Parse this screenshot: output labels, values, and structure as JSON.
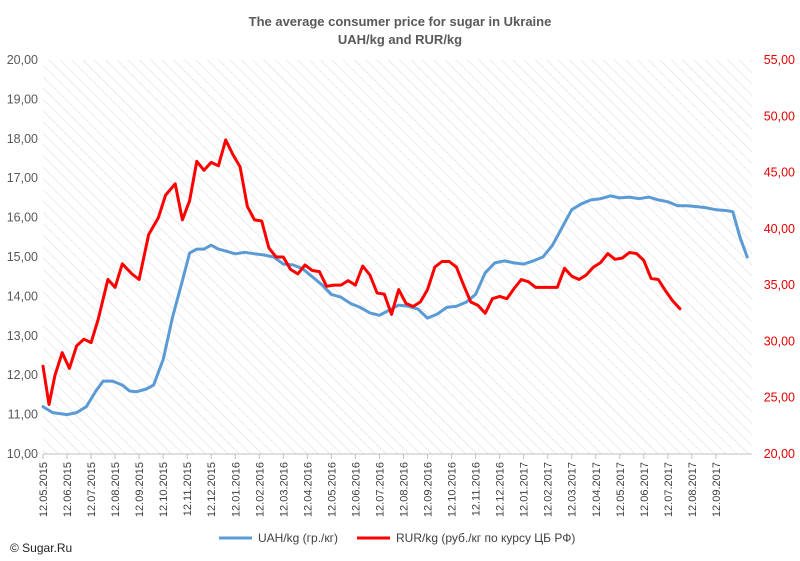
{
  "chart_data": {
    "type": "line",
    "title": "The average consumer price for sugar in Ukraine",
    "subtitle": "UAH/kg and RUR/kg",
    "x_labels": [
      "12.05.2015",
      "12.06.2015",
      "12.07.2015",
      "12.08.2015",
      "12.09.2015",
      "12.10.2015",
      "12.11.2015",
      "12.12.2015",
      "12.01.2016",
      "12.02.2016",
      "12.03.2016",
      "12.04.2016",
      "12.05.2016",
      "12.06.2016",
      "12.07.2016",
      "12.08.2016",
      "12.09.2016",
      "12.10.2016",
      "12.11.2016",
      "12.12.2016",
      "12.01.2017",
      "12.02.2017",
      "12.03.2017",
      "12.04.2017",
      "12.05.2017",
      "12.06.2017",
      "12.07.2017",
      "12.08.2017",
      "12.09.2017"
    ],
    "x_range": [
      0,
      29.5
    ],
    "y_left": {
      "min": 10,
      "max": 20,
      "step": 1,
      "labels": [
        "10,00",
        "11,00",
        "12,00",
        "13,00",
        "14,00",
        "15,00",
        "16,00",
        "17,00",
        "18,00",
        "19,00",
        "20,00"
      ]
    },
    "y_right": {
      "min": 20,
      "max": 55,
      "step": 5,
      "labels": [
        "20,00",
        "25,00",
        "30,00",
        "35,00",
        "40,00",
        "45,00",
        "50,00",
        "55,00"
      ]
    },
    "grid": "diagonal hatch",
    "legend_position": "bottom",
    "series": [
      {
        "name": "UAH/kg  (гр./кг)",
        "axis": "left",
        "color": "#5b9bd5",
        "points": [
          [
            0,
            11.2
          ],
          [
            0.4,
            11.05
          ],
          [
            1,
            11.0
          ],
          [
            1.4,
            11.05
          ],
          [
            1.8,
            11.2
          ],
          [
            2.2,
            11.6
          ],
          [
            2.5,
            11.85
          ],
          [
            2.9,
            11.85
          ],
          [
            3.3,
            11.75
          ],
          [
            3.6,
            11.6
          ],
          [
            3.9,
            11.58
          ],
          [
            4.3,
            11.65
          ],
          [
            4.6,
            11.75
          ],
          [
            5.0,
            12.4
          ],
          [
            5.4,
            13.5
          ],
          [
            5.8,
            14.4
          ],
          [
            6.1,
            15.1
          ],
          [
            6.4,
            15.2
          ],
          [
            6.7,
            15.2
          ],
          [
            7.0,
            15.3
          ],
          [
            7.3,
            15.2
          ],
          [
            7.6,
            15.15
          ],
          [
            8.0,
            15.08
          ],
          [
            8.4,
            15.12
          ],
          [
            8.8,
            15.08
          ],
          [
            9.2,
            15.05
          ],
          [
            9.6,
            15.0
          ],
          [
            10.0,
            14.82
          ],
          [
            10.4,
            14.8
          ],
          [
            10.8,
            14.7
          ],
          [
            11.2,
            14.5
          ],
          [
            11.6,
            14.3
          ],
          [
            12.0,
            14.05
          ],
          [
            12.4,
            13.98
          ],
          [
            12.8,
            13.82
          ],
          [
            13.2,
            13.72
          ],
          [
            13.6,
            13.58
          ],
          [
            14.0,
            13.52
          ],
          [
            14.4,
            13.65
          ],
          [
            14.8,
            13.78
          ],
          [
            15.2,
            13.75
          ],
          [
            15.6,
            13.68
          ],
          [
            16.0,
            13.45
          ],
          [
            16.4,
            13.55
          ],
          [
            16.8,
            13.72
          ],
          [
            17.2,
            13.75
          ],
          [
            17.6,
            13.85
          ],
          [
            18.0,
            14.05
          ],
          [
            18.4,
            14.6
          ],
          [
            18.8,
            14.85
          ],
          [
            19.2,
            14.9
          ],
          [
            19.6,
            14.85
          ],
          [
            20.0,
            14.82
          ],
          [
            20.4,
            14.9
          ],
          [
            20.8,
            15.0
          ],
          [
            21.2,
            15.3
          ],
          [
            21.6,
            15.75
          ],
          [
            22.0,
            16.2
          ],
          [
            22.4,
            16.35
          ],
          [
            22.8,
            16.45
          ],
          [
            23.2,
            16.48
          ],
          [
            23.6,
            16.55
          ],
          [
            24.0,
            16.5
          ],
          [
            24.4,
            16.52
          ],
          [
            24.8,
            16.48
          ],
          [
            25.2,
            16.52
          ],
          [
            25.6,
            16.45
          ],
          [
            26.0,
            16.4
          ],
          [
            26.4,
            16.3
          ],
          [
            26.8,
            16.3
          ],
          [
            27.2,
            16.28
          ],
          [
            27.6,
            16.25
          ],
          [
            28.0,
            16.2
          ],
          [
            28.4,
            16.18
          ],
          [
            28.7,
            16.15
          ],
          [
            29.0,
            15.5
          ],
          [
            29.3,
            15.0
          ]
        ]
      },
      {
        "name": "RUR/kg (руб./кг по курсу ЦБ РФ)",
        "axis": "right",
        "color": "#ff0000",
        "points": [
          [
            0,
            27.8
          ],
          [
            0.25,
            24.4
          ],
          [
            0.5,
            27.0
          ],
          [
            0.8,
            29.0
          ],
          [
            1.1,
            27.6
          ],
          [
            1.4,
            29.6
          ],
          [
            1.7,
            30.2
          ],
          [
            2.0,
            29.9
          ],
          [
            2.3,
            32.0
          ],
          [
            2.7,
            35.5
          ],
          [
            3.0,
            34.8
          ],
          [
            3.3,
            36.9
          ],
          [
            3.7,
            36.0
          ],
          [
            4.0,
            35.5
          ],
          [
            4.4,
            39.5
          ],
          [
            4.8,
            41.0
          ],
          [
            5.1,
            43.0
          ],
          [
            5.5,
            44.0
          ],
          [
            5.8,
            40.8
          ],
          [
            6.1,
            42.5
          ],
          [
            6.4,
            46.0
          ],
          [
            6.7,
            45.2
          ],
          [
            7.0,
            45.9
          ],
          [
            7.3,
            45.6
          ],
          [
            7.6,
            47.9
          ],
          [
            7.9,
            46.6
          ],
          [
            8.2,
            45.5
          ],
          [
            8.5,
            42.0
          ],
          [
            8.8,
            40.8
          ],
          [
            9.1,
            40.7
          ],
          [
            9.4,
            38.3
          ],
          [
            9.7,
            37.5
          ],
          [
            10.0,
            37.5
          ],
          [
            10.3,
            36.4
          ],
          [
            10.6,
            36.0
          ],
          [
            10.9,
            36.8
          ],
          [
            11.2,
            36.3
          ],
          [
            11.5,
            36.2
          ],
          [
            11.8,
            34.9
          ],
          [
            12.1,
            35.0
          ],
          [
            12.4,
            35.0
          ],
          [
            12.7,
            35.4
          ],
          [
            13.0,
            35.0
          ],
          [
            13.3,
            36.7
          ],
          [
            13.6,
            35.9
          ],
          [
            13.9,
            34.3
          ],
          [
            14.2,
            34.2
          ],
          [
            14.5,
            32.4
          ],
          [
            14.8,
            34.6
          ],
          [
            15.1,
            33.4
          ],
          [
            15.4,
            33.1
          ],
          [
            15.7,
            33.5
          ],
          [
            16.0,
            34.6
          ],
          [
            16.3,
            36.6
          ],
          [
            16.6,
            37.1
          ],
          [
            16.9,
            37.1
          ],
          [
            17.2,
            36.6
          ],
          [
            17.5,
            35.0
          ],
          [
            17.8,
            33.5
          ],
          [
            18.1,
            33.2
          ],
          [
            18.4,
            32.5
          ],
          [
            18.7,
            33.8
          ],
          [
            19.0,
            34.0
          ],
          [
            19.3,
            33.8
          ],
          [
            19.6,
            34.7
          ],
          [
            19.9,
            35.5
          ],
          [
            20.2,
            35.3
          ],
          [
            20.5,
            34.8
          ],
          [
            20.8,
            34.8
          ],
          [
            21.1,
            34.8
          ],
          [
            21.4,
            34.8
          ],
          [
            21.7,
            36.5
          ],
          [
            22.0,
            35.8
          ],
          [
            22.3,
            35.5
          ],
          [
            22.6,
            35.9
          ],
          [
            22.9,
            36.6
          ],
          [
            23.2,
            37.0
          ],
          [
            23.5,
            37.8
          ],
          [
            23.8,
            37.3
          ],
          [
            24.1,
            37.4
          ],
          [
            24.4,
            37.9
          ],
          [
            24.7,
            37.8
          ],
          [
            25.0,
            37.2
          ],
          [
            25.3,
            35.6
          ],
          [
            25.6,
            35.5
          ],
          [
            25.9,
            34.5
          ],
          [
            26.2,
            33.6
          ],
          [
            26.5,
            32.9
          ]
        ]
      }
    ]
  },
  "copyright": "© Sugar.Ru"
}
